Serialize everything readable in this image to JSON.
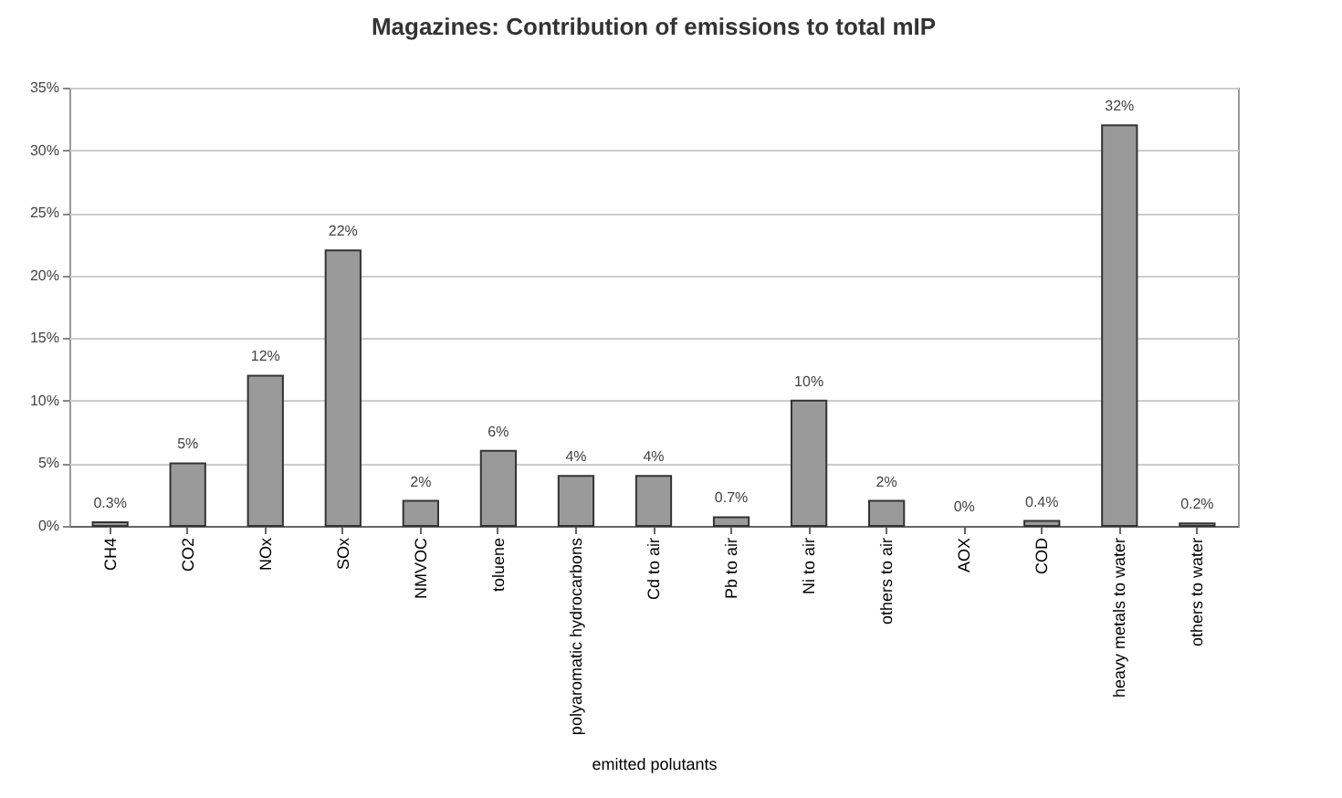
{
  "chart_data": {
    "type": "bar",
    "title": "Magazines: Contribution of emissions to total mIP",
    "xlabel": "emitted polutants",
    "categories": [
      "CH4",
      "CO2",
      "NOx",
      "SOx",
      "NMVOC",
      "toluene",
      "polyaromatic hydrocarbons",
      "Cd to air",
      "Pb to air",
      "Ni to air",
      "others to air",
      "AOX",
      "COD",
      "heavy metals to water",
      "others to water"
    ],
    "values": [
      0.3,
      5,
      12,
      22,
      2,
      6,
      4,
      4,
      0.7,
      10,
      2,
      0,
      0.4,
      32,
      0.2
    ],
    "value_labels": [
      "0.3%",
      "5%",
      "12%",
      "22%",
      "2%",
      "6%",
      "4%",
      "4%",
      "0.7%",
      "10%",
      "2%",
      "0%",
      "0.4%",
      "32%",
      "0.2%"
    ],
    "color": "#9a9a9a",
    "ylim": [
      0,
      35
    ],
    "yticks": [
      {
        "value": 0,
        "label": "0%"
      },
      {
        "value": 5,
        "label": "5%"
      },
      {
        "value": 10,
        "label": "10%"
      },
      {
        "value": 15,
        "label": "15%"
      },
      {
        "value": 20,
        "label": "20%"
      },
      {
        "value": 25,
        "label": "25%"
      },
      {
        "value": 30,
        "label": "30%"
      },
      {
        "value": 35,
        "label": "35%"
      }
    ],
    "grid": "y"
  }
}
